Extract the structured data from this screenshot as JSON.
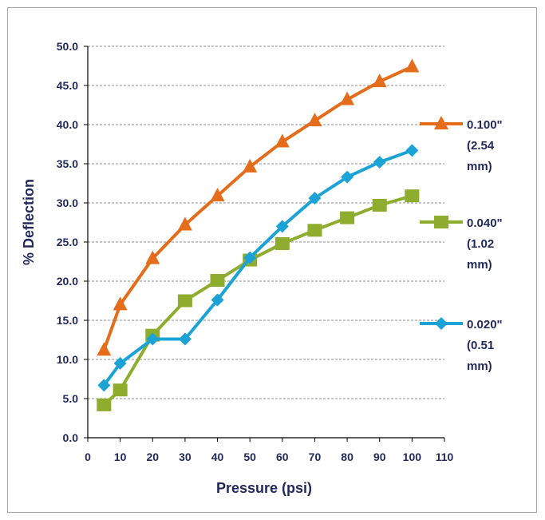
{
  "chart_data": {
    "type": "line",
    "xlabel": "Pressure (psi)",
    "ylabel": "% Deflection",
    "xlim": [
      0,
      110
    ],
    "ylim": [
      0,
      50
    ],
    "x_ticks": [
      "0",
      "10",
      "20",
      "30",
      "40",
      "50",
      "60",
      "70",
      "80",
      "90",
      "100",
      "110"
    ],
    "y_ticks": [
      "0.0",
      "5.0",
      "10.0",
      "15.0",
      "20.0",
      "25.0",
      "30.0",
      "35.0",
      "40.0",
      "45.0",
      "50.0"
    ],
    "grid": "horizontal dashed",
    "legend_position": "right",
    "series": [
      {
        "key": "s100",
        "legend_lines": [
          "0.100\"",
          "(2.54",
          "mm)"
        ],
        "color": "#e46c1a",
        "marker": "triangle",
        "points": [
          [
            5,
            11.2
          ],
          [
            10,
            17.0
          ],
          [
            20,
            22.9
          ],
          [
            30,
            27.2
          ],
          [
            40,
            30.9
          ],
          [
            50,
            34.6
          ],
          [
            60,
            37.8
          ],
          [
            70,
            40.5
          ],
          [
            80,
            43.2
          ],
          [
            90,
            45.5
          ],
          [
            100,
            47.4
          ]
        ]
      },
      {
        "key": "s040",
        "legend_lines": [
          "0.040\"",
          "(1.02",
          "mm)"
        ],
        "color": "#8eac2e",
        "marker": "square",
        "points": [
          [
            5,
            4.2
          ],
          [
            10,
            6.1
          ],
          [
            20,
            13.1
          ],
          [
            30,
            17.5
          ],
          [
            40,
            20.1
          ],
          [
            50,
            22.7
          ],
          [
            60,
            24.8
          ],
          [
            70,
            26.5
          ],
          [
            80,
            28.1
          ],
          [
            90,
            29.7
          ],
          [
            100,
            30.9
          ]
        ]
      },
      {
        "key": "s020",
        "legend_lines": [
          "0.020\"",
          "(0.51",
          "mm)"
        ],
        "color": "#1ba3d6",
        "marker": "diamond",
        "points": [
          [
            5,
            6.7
          ],
          [
            10,
            9.5
          ],
          [
            20,
            12.6
          ],
          [
            30,
            12.6
          ],
          [
            40,
            17.6
          ],
          [
            50,
            23.0
          ],
          [
            60,
            27.0
          ],
          [
            70,
            30.6
          ],
          [
            80,
            33.3
          ],
          [
            90,
            35.2
          ],
          [
            100,
            36.7
          ]
        ]
      }
    ]
  }
}
